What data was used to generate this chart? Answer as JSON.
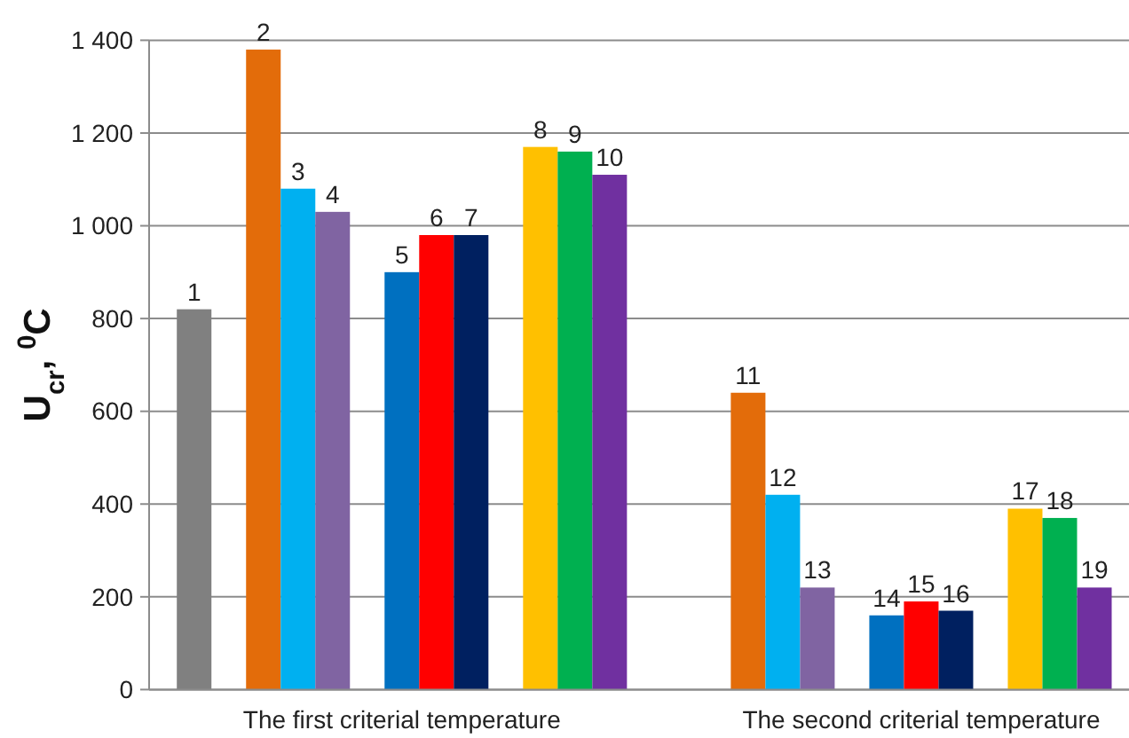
{
  "chart_data": {
    "type": "bar",
    "ylabel": "U$_{cr}$, $^{0}$C",
    "categories": [
      "The first criterial temperature",
      "The second criterial temperature"
    ],
    "ylim": [
      0,
      1400
    ],
    "yticks": [
      0,
      200,
      400,
      600,
      800,
      {
        "value": 1000,
        "label": "1 000"
      },
      {
        "value": 1200,
        "label": "1 200"
      },
      {
        "value": 1400,
        "label": "1 400"
      }
    ],
    "grid": "y",
    "series": [
      {
        "name": "1",
        "color": "#808080",
        "values": [
          820,
          null
        ]
      },
      {
        "name": "2",
        "color": "#e36c0a",
        "values": [
          1380,
          null
        ]
      },
      {
        "name": "3",
        "color": "#00b0f0",
        "values": [
          1080,
          null
        ]
      },
      {
        "name": "4",
        "color": "#8064a2",
        "values": [
          1030,
          null
        ]
      },
      {
        "name": "5",
        "color": "#0070c0",
        "values": [
          900,
          null
        ]
      },
      {
        "name": "6",
        "color": "#ff0000",
        "values": [
          980,
          null
        ]
      },
      {
        "name": "7",
        "color": "#002060",
        "values": [
          980,
          null
        ]
      },
      {
        "name": "8",
        "color": "#ffc000",
        "values": [
          1170,
          null
        ]
      },
      {
        "name": "9",
        "color": "#00b050",
        "values": [
          1160,
          null
        ]
      },
      {
        "name": "10",
        "color": "#7030a0",
        "values": [
          1110,
          null
        ]
      },
      {
        "name": "11",
        "color": "#e36c0a",
        "values": [
          null,
          640
        ]
      },
      {
        "name": "12",
        "color": "#00b0f0",
        "values": [
          null,
          420
        ]
      },
      {
        "name": "13",
        "color": "#8064a2",
        "values": [
          null,
          220
        ]
      },
      {
        "name": "14",
        "color": "#0070c0",
        "values": [
          null,
          160
        ]
      },
      {
        "name": "15",
        "color": "#ff0000",
        "values": [
          null,
          190
        ]
      },
      {
        "name": "16",
        "color": "#002060",
        "values": [
          null,
          170
        ]
      },
      {
        "name": "17",
        "color": "#ffc000",
        "values": [
          null,
          390
        ]
      },
      {
        "name": "18",
        "color": "#00b050",
        "values": [
          null,
          370
        ]
      },
      {
        "name": "19",
        "color": "#7030a0",
        "values": [
          null,
          220
        ]
      }
    ]
  }
}
